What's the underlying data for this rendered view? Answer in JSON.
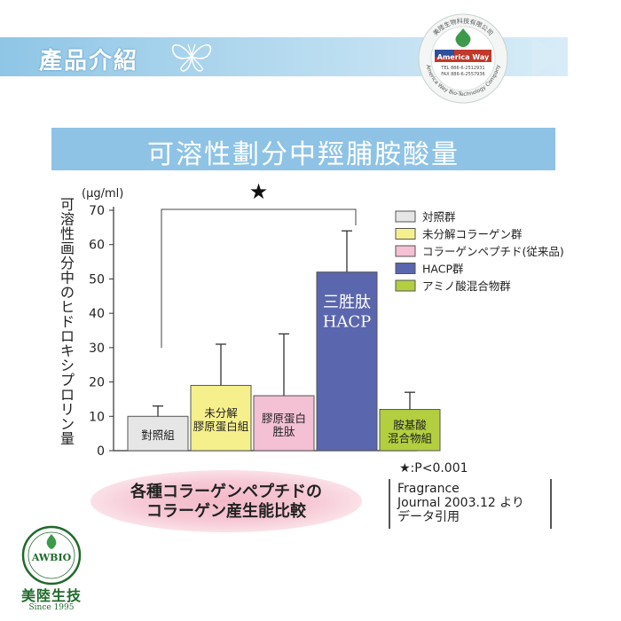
{
  "header": {
    "title": "產品介紹"
  },
  "seal": {
    "company": "美陸生物科技有限公司",
    "brand": "America Way",
    "tel": "TEL 886-6-2512931",
    "fax": "FAX 886-6-2557936",
    "english": "America Way Bio-Technology Company"
  },
  "chart_title": "可溶性劃分中羥脯胺酸量",
  "chart_data": {
    "type": "bar",
    "unit_label": "(μg/ml)",
    "ylabel": "可溶性画分中のヒドロキシプロリン量",
    "ylim": [
      0,
      70
    ],
    "yticks": [
      0,
      10,
      20,
      30,
      40,
      50,
      60,
      70
    ],
    "categories": [
      "對照組",
      "未分解膠原蛋白組",
      "膠原蛋白胜肽",
      "三胜肽HACP",
      "胺基酸混合物組"
    ],
    "bar_labels": [
      [
        "對照組"
      ],
      [
        "未分解",
        "膠原蛋白組"
      ],
      [
        "膠原蛋白",
        "胜肽"
      ],
      [
        "三胜肽",
        "HACP"
      ],
      [
        "胺基酸",
        "混合物組"
      ]
    ],
    "values": [
      10,
      19,
      16,
      52,
      12
    ],
    "errors": [
      3,
      12,
      18,
      12,
      5
    ],
    "colors": [
      "#e6e6e6",
      "#f6f08c",
      "#f3c0d4",
      "#5a66ad",
      "#b3cf3f"
    ],
    "legend": [
      "対照群",
      "未分解コラーゲン群",
      "コラーゲンペプチド(従来品)",
      "HACP群",
      "アミノ酸混合物群"
    ],
    "significance": {
      "marker": "★",
      "note": "★:P<0.001"
    }
  },
  "caption": {
    "line1": "各種コラーゲンペプチドの",
    "line2": "コラーゲン産生能比較"
  },
  "source": {
    "line1": "Fragrance",
    "line2": "Journal 2003.12 より",
    "line3": "データ引用"
  },
  "logo": {
    "name": "AWBIO",
    "cn": "美陸生技",
    "since": "Since 1995"
  }
}
